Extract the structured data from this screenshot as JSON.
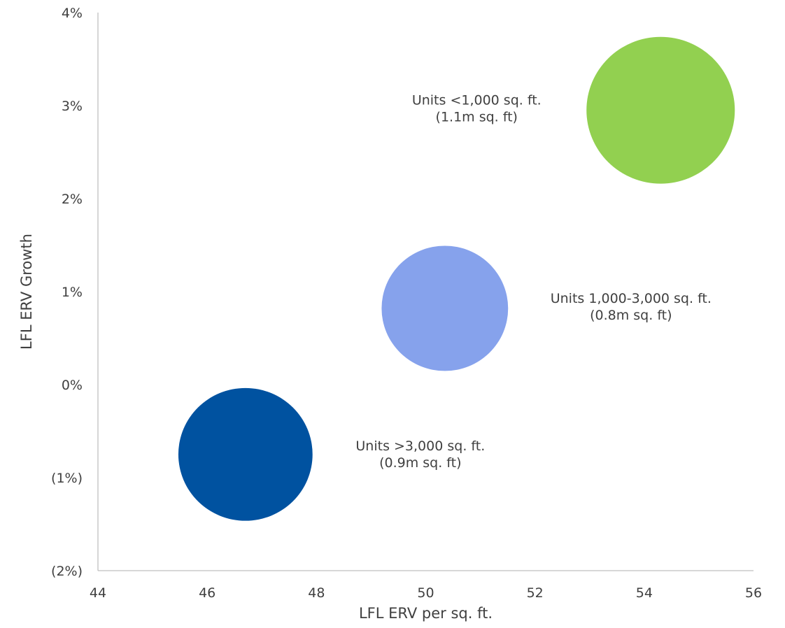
{
  "chart_data": {
    "type": "scatter",
    "subtype": "bubble",
    "xlabel": "LFL ERV per sq. ft.",
    "ylabel": "LFL ERV Growth",
    "xlim": [
      44,
      56
    ],
    "ylim": [
      -2,
      4
    ],
    "x_ticks": [
      44,
      46,
      48,
      50,
      52,
      54,
      56
    ],
    "x_tick_labels": [
      "44",
      "46",
      "48",
      "50",
      "52",
      "54",
      "56"
    ],
    "y_ticks": [
      4,
      3,
      2,
      1,
      0,
      -1,
      -2
    ],
    "y_tick_labels": [
      "4%",
      "3%",
      "2%",
      "1%",
      "0%",
      "(1%)",
      "(2%)"
    ],
    "grid": false,
    "legend": "none",
    "series": [
      {
        "label_lines": [
          "Units <1,000 sq. ft.",
          "(1.1m sq. ft)"
        ],
        "x": 54.3,
        "y": 2.95,
        "size": 1.1,
        "color": "#92d050"
      },
      {
        "label_lines": [
          "Units 1,000-3,000 sq. ft.",
          "(0.8m sq. ft)"
        ],
        "x": 50.35,
        "y": 0.82,
        "size": 0.8,
        "color": "#86a2ec"
      },
      {
        "label_lines": [
          "Units >3,000 sq. ft.",
          "(0.9m sq. ft)"
        ],
        "x": 46.7,
        "y": -0.75,
        "size": 0.9,
        "color": "#0052a0"
      }
    ]
  }
}
